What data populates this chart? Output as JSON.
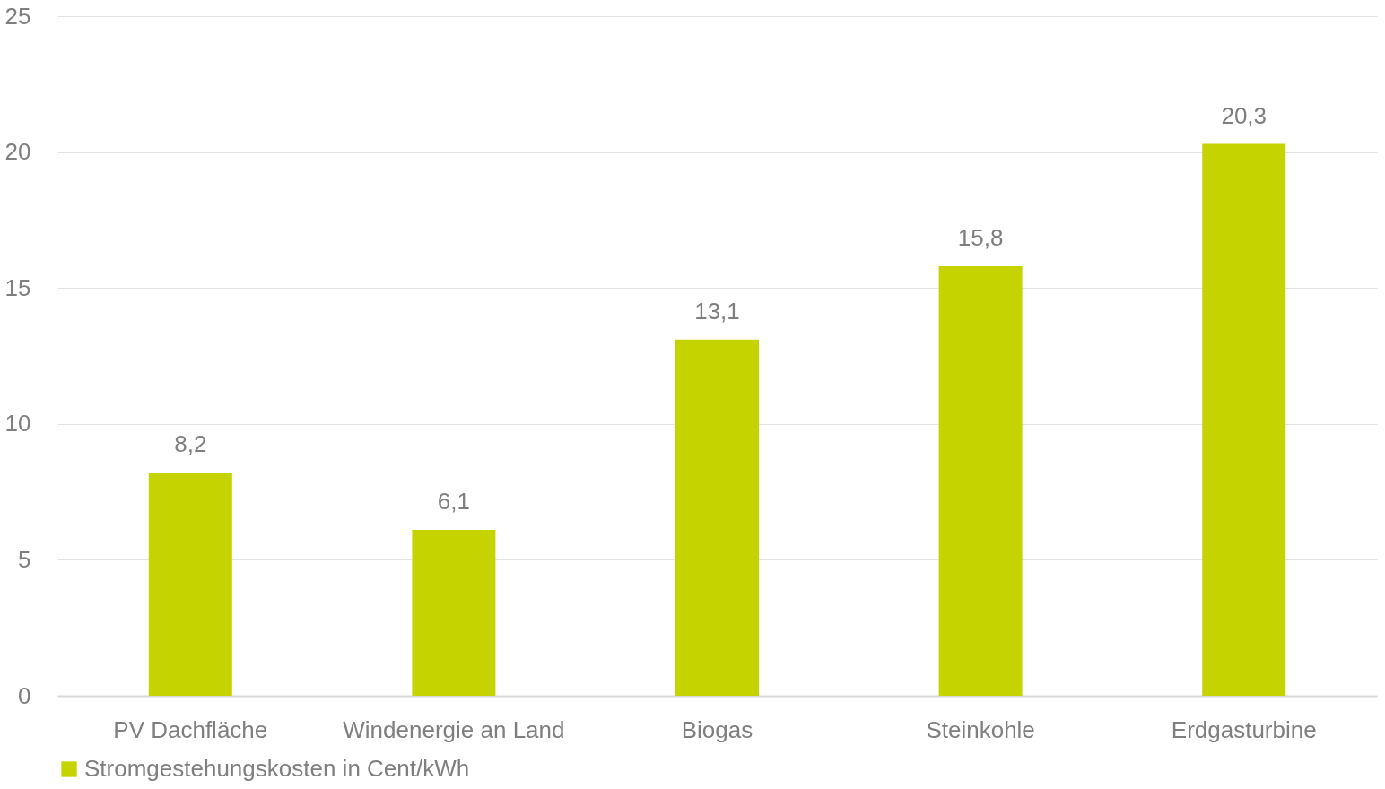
{
  "chart_data": {
    "type": "bar",
    "categories": [
      "PV Dachfläche",
      "Windenergie an Land",
      "Biogas",
      "Steinkohle",
      "Erdgasturbine"
    ],
    "series": [
      {
        "name": "Stromgestehungskosten in Cent/kWh",
        "color": "#c5d300",
        "values": [
          8.2,
          6.1,
          13.1,
          15.8,
          20.3
        ],
        "value_labels": [
          "8,2",
          "6,1",
          "13,1",
          "15,8",
          "20,3"
        ]
      }
    ],
    "ylim": [
      0,
      25
    ],
    "yticks": [
      0,
      5,
      10,
      15,
      20,
      25
    ],
    "grid": "y",
    "legend": "bottom"
  }
}
